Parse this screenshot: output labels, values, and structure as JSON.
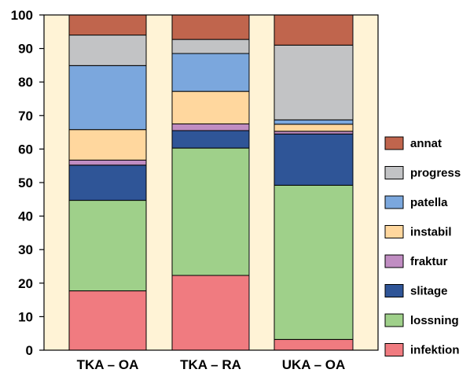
{
  "chart_data": {
    "type": "bar",
    "stacked": true,
    "categories": [
      "TKA – OA",
      "TKA – RA",
      "UKA – OA"
    ],
    "ylim": [
      0,
      100
    ],
    "yticks": [
      0,
      10,
      20,
      30,
      40,
      50,
      60,
      70,
      80,
      90,
      100
    ],
    "background_band_color": "#fff3d6",
    "legend_position": "right",
    "series": [
      {
        "name": "infektion",
        "color": "#f07b80",
        "values": [
          17.7,
          22.3,
          3.2
        ]
      },
      {
        "name": "lossning",
        "color": "#9fd08a",
        "values": [
          27.0,
          38.0,
          46.0
        ]
      },
      {
        "name": "slitage",
        "color": "#2f5597",
        "values": [
          10.5,
          5.2,
          15.3
        ]
      },
      {
        "name": "fraktur",
        "color": "#c08dc2",
        "values": [
          1.5,
          2.0,
          0.8
        ]
      },
      {
        "name": "instabil",
        "color": "#ffd79e",
        "values": [
          9.1,
          9.7,
          2.1
        ]
      },
      {
        "name": "patella",
        "color": "#7ba7dd",
        "values": [
          19.1,
          11.3,
          1.3
        ]
      },
      {
        "name": "progress",
        "color": "#c2c3c5",
        "values": [
          9.1,
          4.2,
          22.3
        ]
      },
      {
        "name": "annat",
        "color": "#c0654d",
        "values": [
          6.0,
          7.3,
          9.0
        ]
      }
    ]
  }
}
